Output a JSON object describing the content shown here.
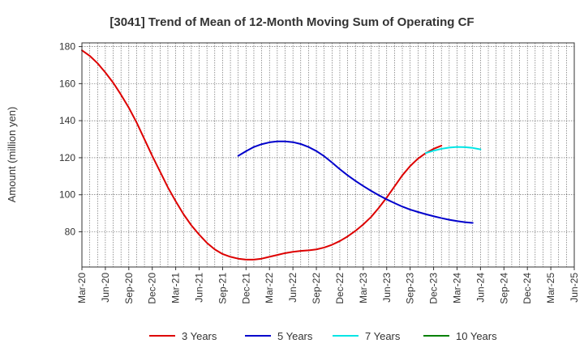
{
  "chart_data": {
    "type": "line",
    "title": "[3041]  Trend of Mean of 12-Month Moving Sum of Operating CF",
    "xlabel": "",
    "ylabel": "Amount (million yen)",
    "ylim": [
      61,
      182
    ],
    "yticks": [
      80,
      100,
      120,
      140,
      160,
      180
    ],
    "x_tick_labels": [
      "Mar-20",
      "Jun-20",
      "Sep-20",
      "Dec-20",
      "Mar-21",
      "Jun-21",
      "Sep-21",
      "Dec-21",
      "Mar-22",
      "Jun-22",
      "Sep-22",
      "Dec-22",
      "Mar-23",
      "Jun-23",
      "Sep-23",
      "Dec-23",
      "Mar-24",
      "Jun-24",
      "Sep-24",
      "Dec-24",
      "Mar-25",
      "Jun-25"
    ],
    "grid": true,
    "legend_position": "bottom",
    "series": [
      {
        "name": "3 Years",
        "color": "#dd0000",
        "start": "Mar-20",
        "values": [
          178,
          175,
          171,
          166,
          160.5,
          154,
          147,
          139,
          130,
          121,
          112.5,
          104,
          96.5,
          89.5,
          83.5,
          78.5,
          74,
          70.5,
          68,
          66.5,
          65.5,
          65,
          65,
          65.5,
          66.5,
          67.5,
          68.5,
          69.2,
          69.7,
          70,
          70.5,
          71.5,
          73,
          75,
          77.5,
          80.5,
          84,
          88,
          93,
          98.5,
          104.5,
          110.5,
          115.5,
          119.5,
          122.5,
          124.8,
          126.5
        ]
      },
      {
        "name": "5 Years",
        "color": "#0000cc",
        "start": "Nov-21",
        "values": [
          121,
          123.5,
          125.8,
          127.3,
          128.3,
          128.8,
          128.8,
          128.4,
          127.4,
          125.8,
          123.6,
          120.8,
          117.4,
          113.8,
          110.5,
          107.5,
          104.7,
          102.1,
          99.7,
          97.5,
          95.5,
          93.6,
          92,
          90.7,
          89.5,
          88.4,
          87.4,
          86.5,
          85.8,
          85.2,
          84.8
        ]
      },
      {
        "name": "7 Years",
        "color": "#00e5e5",
        "start": "Nov-23",
        "values": [
          122.5,
          123.8,
          124.8,
          125.5,
          125.8,
          125.7,
          125.3,
          124.5
        ]
      },
      {
        "name": "10 Years",
        "color": "#008000",
        "start": "Mar-20",
        "values": []
      }
    ]
  }
}
